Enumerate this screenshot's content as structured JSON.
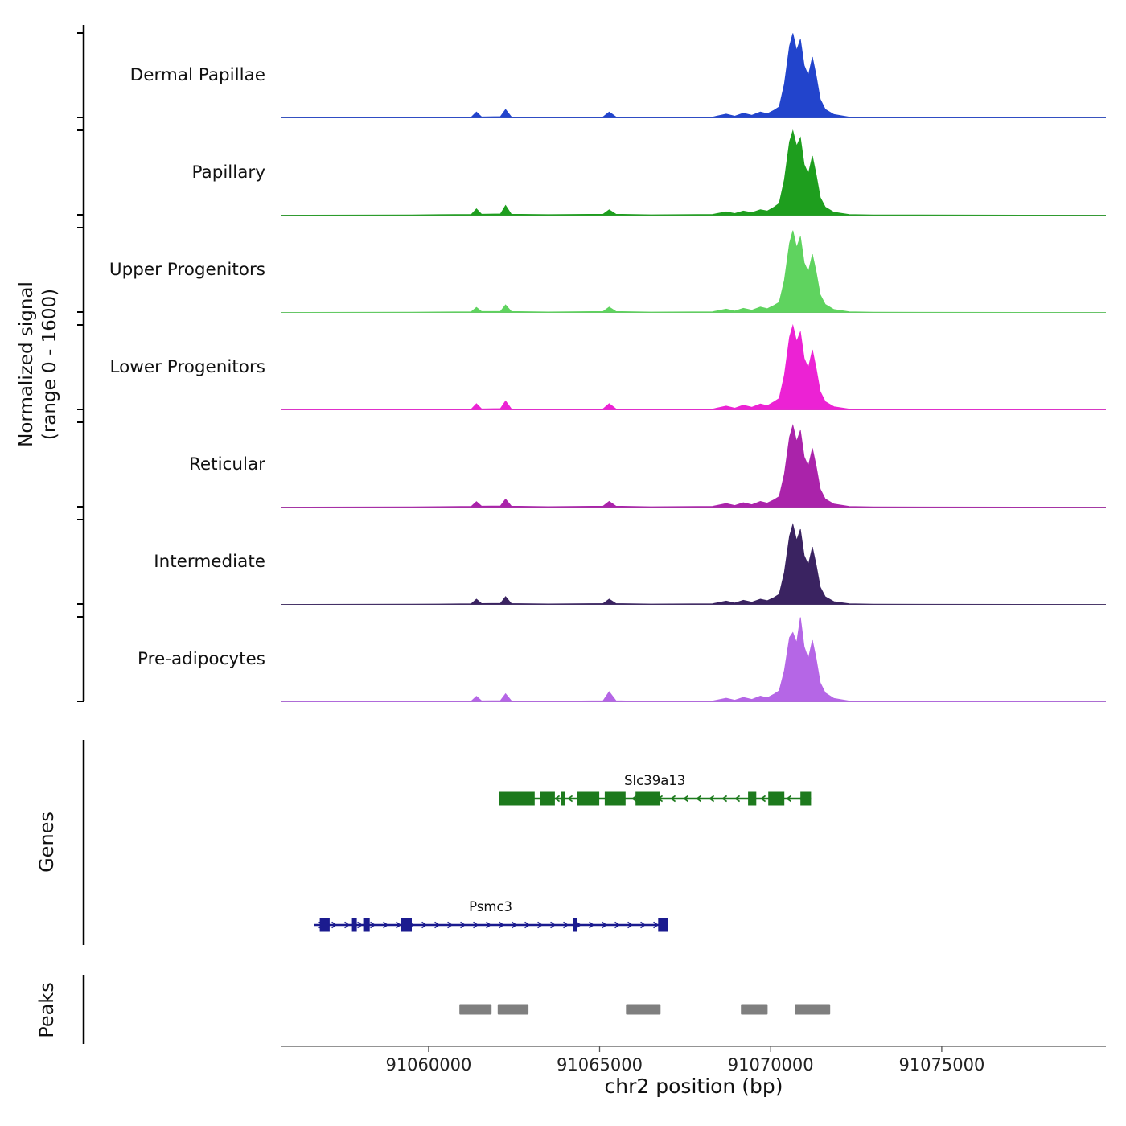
{
  "figure": {
    "y_axis_label_line1": "Normalized signal",
    "y_axis_label_line2": "(range 0 - 1600)",
    "genes_section_label": "Genes",
    "peaks_section_label": "Peaks"
  },
  "chart_data": {
    "type": "area",
    "title": "",
    "region": {
      "chrom": "chr2",
      "start": 91055700,
      "end": 91079800
    },
    "x_axis": {
      "label": "chr2 position (bp)",
      "ticks": [
        91060000,
        91065000,
        91070000,
        91075000
      ]
    },
    "y_axis": {
      "label": "Normalized signal (range 0 - 1600)",
      "range": [
        0,
        1600
      ]
    },
    "signal": {
      "x_bp": [
        91055700,
        91059500,
        91060300,
        91061250,
        91061400,
        91061550,
        91062100,
        91062250,
        91062420,
        91063500,
        91065100,
        91065280,
        91065480,
        91066500,
        91068300,
        91068700,
        91068950,
        91069200,
        91069450,
        91069700,
        91069900,
        91070100,
        91070250,
        91070400,
        91070550,
        91070650,
        91070760,
        91070870,
        91070980,
        91071100,
        91071220,
        91071330,
        91071450,
        91071600,
        91071850,
        91072300,
        91073000,
        91079800
      ],
      "series": [
        {
          "name": "Dermal Papillae",
          "color": "#2244cc",
          "values": [
            0,
            6,
            10,
            16,
            112,
            19,
            24,
            160,
            19,
            10,
            19,
            112,
            19,
            8,
            16,
            72,
            32,
            88,
            48,
            112,
            80,
            144,
            208,
            640,
            1360,
            1600,
            1280,
            1488,
            992,
            800,
            1152,
            800,
            352,
            160,
            64,
            16,
            6,
            0
          ]
        },
        {
          "name": "Papillary",
          "color": "#1e9e1e",
          "values": [
            0,
            6,
            10,
            16,
            120,
            19,
            24,
            184,
            19,
            10,
            19,
            104,
            19,
            8,
            16,
            64,
            32,
            80,
            48,
            104,
            80,
            152,
            224,
            672,
            1392,
            1600,
            1312,
            1472,
            960,
            784,
            1120,
            768,
            336,
            152,
            56,
            14,
            6,
            0
          ]
        },
        {
          "name": "Upper Progenitors",
          "color": "#5fd35f",
          "values": [
            0,
            5,
            9,
            14,
            96,
            18,
            22,
            144,
            18,
            9,
            18,
            104,
            18,
            7,
            14,
            64,
            28,
            80,
            44,
            104,
            72,
            136,
            192,
            608,
            1312,
            1552,
            1232,
            1440,
            944,
            768,
            1104,
            768,
            336,
            152,
            56,
            14,
            5,
            0
          ]
        },
        {
          "name": "Lower Progenitors",
          "color": "#ec22d4",
          "values": [
            0,
            6,
            10,
            16,
            118,
            19,
            24,
            168,
            19,
            10,
            19,
            118,
            19,
            8,
            16,
            72,
            32,
            88,
            48,
            112,
            80,
            152,
            216,
            656,
            1376,
            1600,
            1296,
            1480,
            976,
            792,
            1136,
            784,
            344,
            156,
            60,
            15,
            6,
            0
          ]
        },
        {
          "name": "Reticular",
          "color": "#aa23aa",
          "values": [
            0,
            5,
            9,
            15,
            104,
            18,
            23,
            152,
            18,
            9,
            18,
            108,
            18,
            7,
            15,
            68,
            30,
            84,
            46,
            108,
            76,
            140,
            200,
            624,
            1328,
            1552,
            1248,
            1456,
            952,
            776,
            1112,
            776,
            340,
            152,
            58,
            14,
            5,
            0
          ]
        },
        {
          "name": "Intermediate",
          "color": "#3a2361",
          "values": [
            0,
            5,
            8,
            14,
            100,
            17,
            22,
            148,
            17,
            9,
            17,
            100,
            17,
            7,
            14,
            64,
            28,
            80,
            44,
            100,
            72,
            132,
            192,
            608,
            1296,
            1520,
            1216,
            1424,
            928,
            752,
            1088,
            752,
            328,
            144,
            54,
            13,
            5,
            0
          ]
        },
        {
          "name": "Pre-adipocytes",
          "color": "#b566e6",
          "values": [
            0,
            6,
            10,
            15,
            104,
            18,
            23,
            152,
            18,
            10,
            20,
            192,
            20,
            8,
            15,
            68,
            30,
            84,
            46,
            108,
            76,
            144,
            208,
            592,
            1216,
            1312,
            1120,
            1600,
            1040,
            816,
            1168,
            816,
            360,
            168,
            64,
            16,
            6,
            0
          ]
        }
      ]
    },
    "genes": [
      {
        "name": "Slc39a13",
        "color": "#1d7a1d",
        "strand": "-",
        "start": 91062050,
        "end": 91071180,
        "exons": [
          [
            91062050,
            91063100
          ],
          [
            91063270,
            91063690
          ],
          [
            91063870,
            91063990
          ],
          [
            91064350,
            91064990
          ],
          [
            91065150,
            91065760
          ],
          [
            91066050,
            91066750
          ],
          [
            91069340,
            91069580
          ],
          [
            91069930,
            91070400
          ],
          [
            91070870,
            91071180
          ]
        ]
      },
      {
        "name": "Psmc3",
        "color": "#1b1b8f",
        "strand": "+",
        "start": 91056640,
        "end": 91066990,
        "exons": [
          [
            91056820,
            91057110
          ],
          [
            91057760,
            91057900
          ],
          [
            91058090,
            91058280
          ],
          [
            91059180,
            91059510
          ],
          [
            91064230,
            91064350
          ],
          [
            91066710,
            91066990
          ]
        ]
      }
    ],
    "peaks": [
      [
        91060900,
        91061840
      ],
      [
        91062020,
        91062920
      ],
      [
        91065770,
        91066780
      ],
      [
        91069130,
        91069910
      ],
      [
        91070710,
        91071740
      ]
    ],
    "peak_color": "#7f7f7f"
  }
}
